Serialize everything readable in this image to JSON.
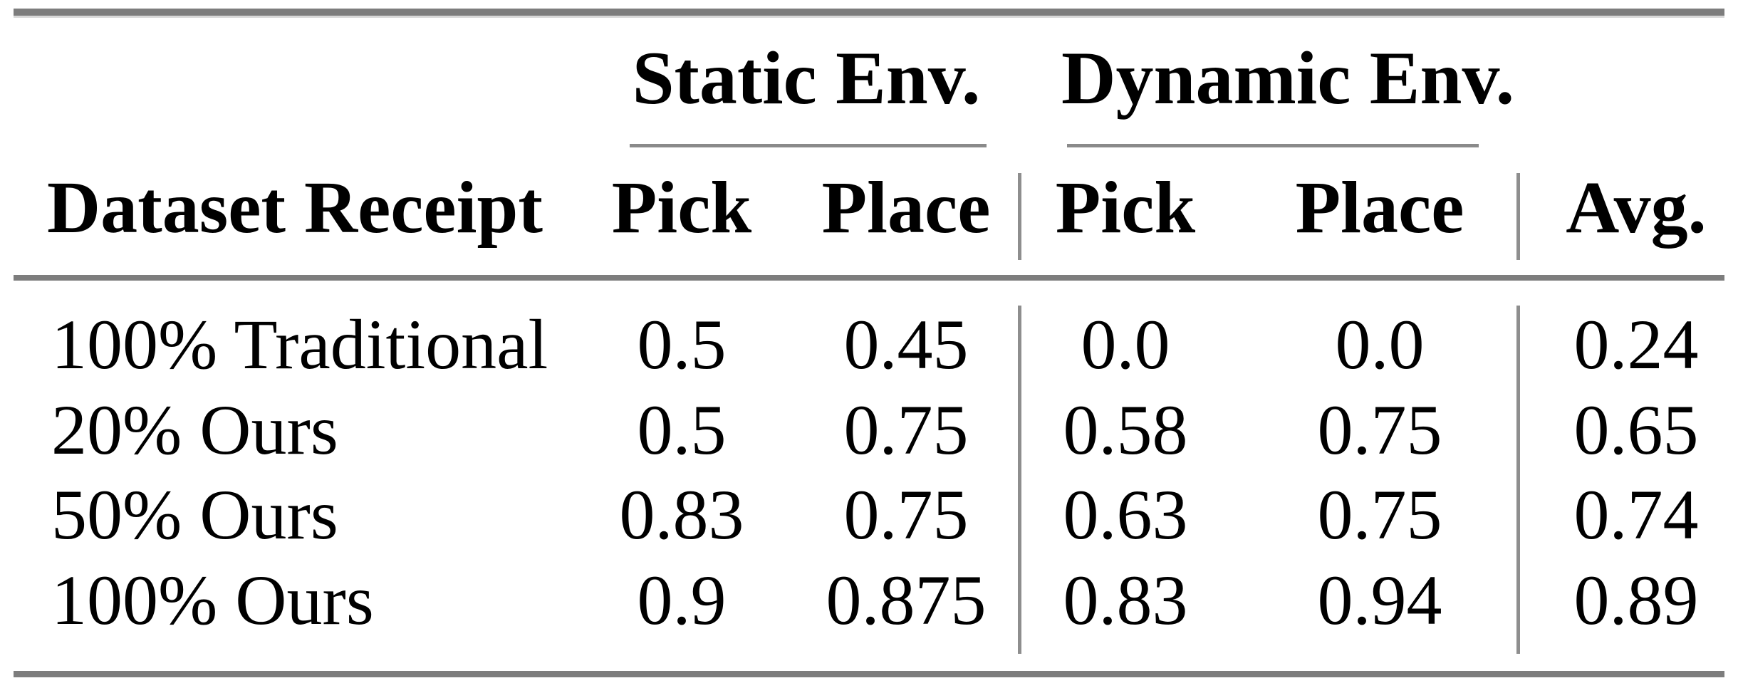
{
  "page": {
    "background": "#ffffff",
    "text_color": "#000000",
    "thick_rule_color": "#7d7d7d",
    "thin_rule_color": "#8a8a8a",
    "separator_color": "#8e8e8e"
  },
  "table": {
    "group_headers": [
      {
        "label": "Static Env."
      },
      {
        "label": "Dynamic Env."
      }
    ],
    "column_headers": {
      "row_label": "Dataset Receipt",
      "static_pick": "Pick",
      "static_place": "Place",
      "dynamic_pick": "Pick",
      "dynamic_place": "Place",
      "avg": "Avg."
    },
    "rows": [
      {
        "label": "100% Traditional",
        "static_pick": "0.5",
        "static_place": "0.45",
        "dynamic_pick": "0.0",
        "dynamic_place": "0.0",
        "avg": "0.24"
      },
      {
        "label": "20% Ours",
        "static_pick": "0.5",
        "static_place": "0.75",
        "dynamic_pick": "0.58",
        "dynamic_place": "0.75",
        "avg": "0.65"
      },
      {
        "label": "50% Ours",
        "static_pick": "0.83",
        "static_place": "0.75",
        "dynamic_pick": "0.63",
        "dynamic_place": "0.75",
        "avg": "0.74"
      },
      {
        "label": "100% Ours",
        "static_pick": "0.9",
        "static_place": "0.875",
        "dynamic_pick": "0.83",
        "dynamic_place": "0.94",
        "avg": "0.89"
      }
    ]
  },
  "chart_data": {
    "type": "table",
    "column_groups": [
      "Static Env.",
      "Dynamic Env."
    ],
    "columns": [
      "Dataset Receipt",
      "Static Env. Pick",
      "Static Env. Place",
      "Dynamic Env. Pick",
      "Dynamic Env. Place",
      "Avg."
    ],
    "rows": [
      [
        "100% Traditional",
        0.5,
        0.45,
        0.0,
        0.0,
        0.24
      ],
      [
        "20% Ours",
        0.5,
        0.75,
        0.58,
        0.75,
        0.65
      ],
      [
        "50% Ours",
        0.83,
        0.75,
        0.63,
        0.75,
        0.74
      ],
      [
        "100% Ours",
        0.9,
        0.875,
        0.83,
        0.94,
        0.89
      ]
    ]
  }
}
